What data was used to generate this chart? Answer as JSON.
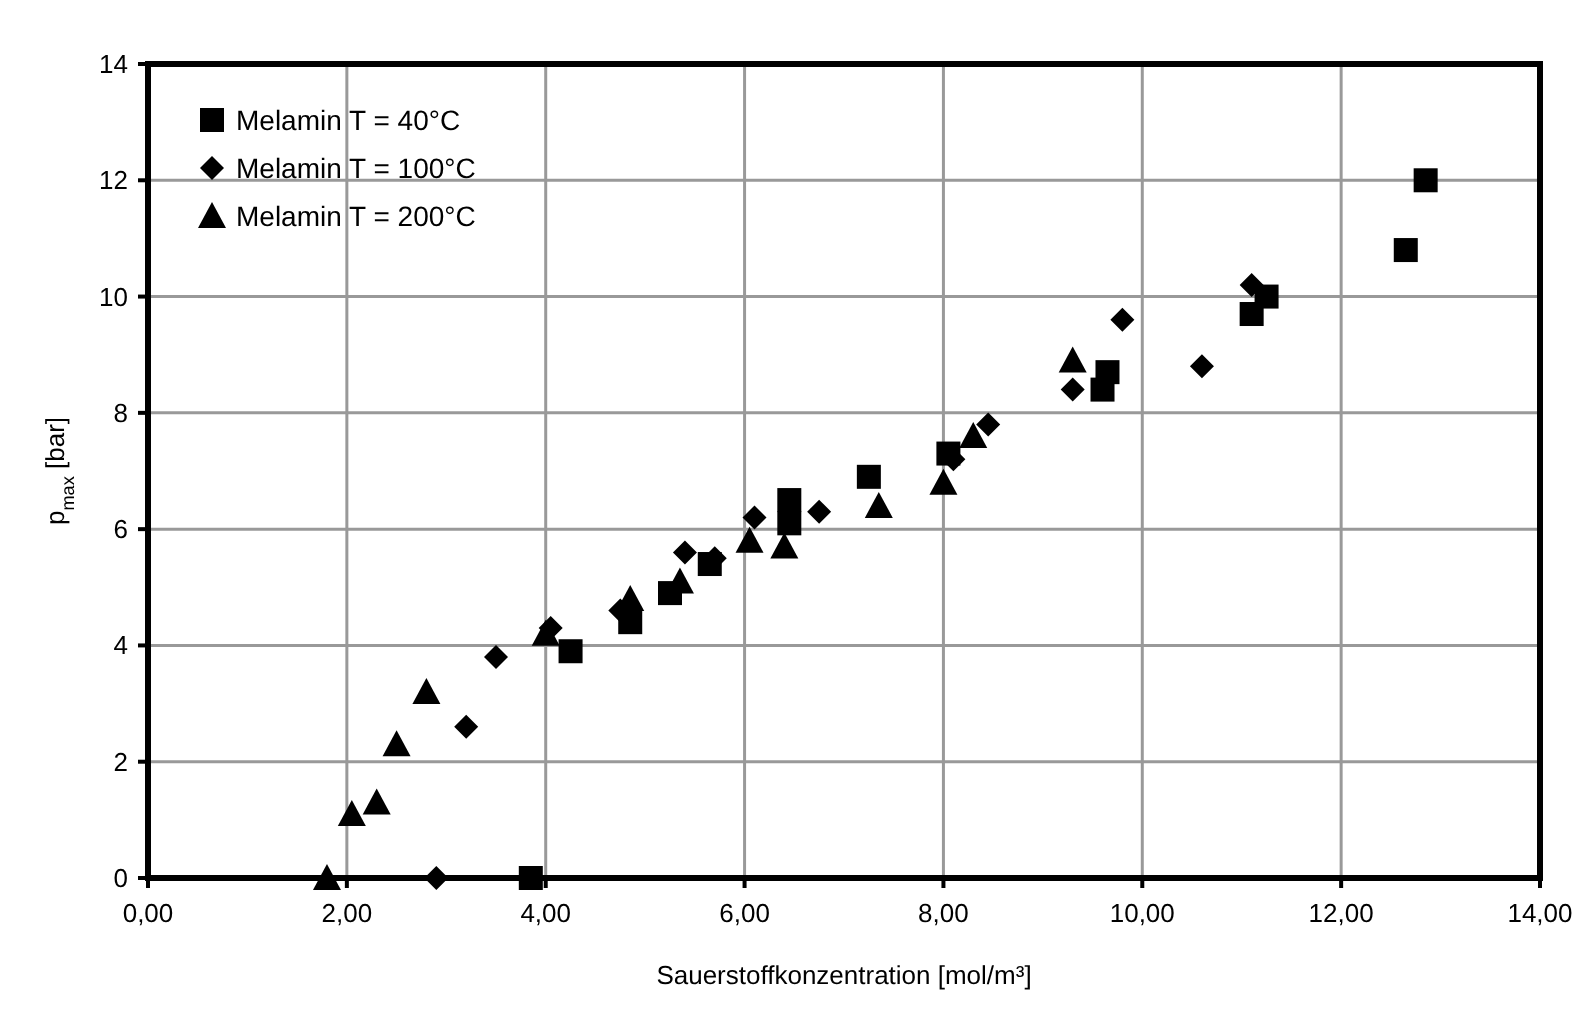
{
  "chart_data": {
    "type": "scatter",
    "xlabel": "Sauerstoffkonzentration [mol/m³]",
    "ylabel": "p$_{max}$ [bar]",
    "xlim": [
      0,
      14
    ],
    "ylim": [
      0,
      14
    ],
    "xticks": [
      {
        "value": 0,
        "label": "0,00"
      },
      {
        "value": 2,
        "label": "2,00"
      },
      {
        "value": 4,
        "label": "4,00"
      },
      {
        "value": 6,
        "label": "6,00"
      },
      {
        "value": 8,
        "label": "8,00"
      },
      {
        "value": 10,
        "label": "10,00"
      },
      {
        "value": 12,
        "label": "12,00"
      },
      {
        "value": 14,
        "label": "14,00"
      }
    ],
    "yticks": [
      0,
      2,
      4,
      6,
      8,
      10,
      12,
      14
    ],
    "grid": true,
    "legend": "top left",
    "series": [
      {
        "name": "Melamin T = 40°C",
        "color": "#000000",
        "marker": "square",
        "x": [
          3.85,
          4.25,
          4.85,
          5.25,
          5.65,
          6.45,
          6.45,
          7.25,
          8.05,
          9.6,
          9.65,
          11.1,
          11.25,
          12.65,
          12.85
        ],
        "values": [
          0,
          3.9,
          4.4,
          4.9,
          5.4,
          6.1,
          6.5,
          6.9,
          7.3,
          8.4,
          8.7,
          9.7,
          10.0,
          10.8,
          12.0
        ]
      },
      {
        "name": "Melamin T = 100°C",
        "color": "#000000",
        "marker": "diamond",
        "x": [
          2.9,
          3.2,
          3.5,
          4.05,
          4.75,
          5.4,
          5.7,
          6.1,
          6.75,
          8.1,
          8.45,
          9.3,
          9.8,
          10.6,
          11.1
        ],
        "values": [
          0,
          2.6,
          3.8,
          4.3,
          4.6,
          5.6,
          5.5,
          6.2,
          6.3,
          7.2,
          7.8,
          8.4,
          9.6,
          8.8,
          10.2
        ]
      },
      {
        "name": "Melamin T = 200°C",
        "color": "#000000",
        "marker": "triangle",
        "x": [
          1.8,
          2.05,
          2.3,
          2.5,
          2.8,
          4.0,
          4.85,
          5.35,
          6.05,
          6.4,
          7.35,
          8.0,
          8.3,
          9.3
        ],
        "values": [
          0,
          1.1,
          1.3,
          2.3,
          3.2,
          4.2,
          4.8,
          5.1,
          5.8,
          5.7,
          6.4,
          6.8,
          7.6,
          8.9
        ]
      }
    ]
  }
}
